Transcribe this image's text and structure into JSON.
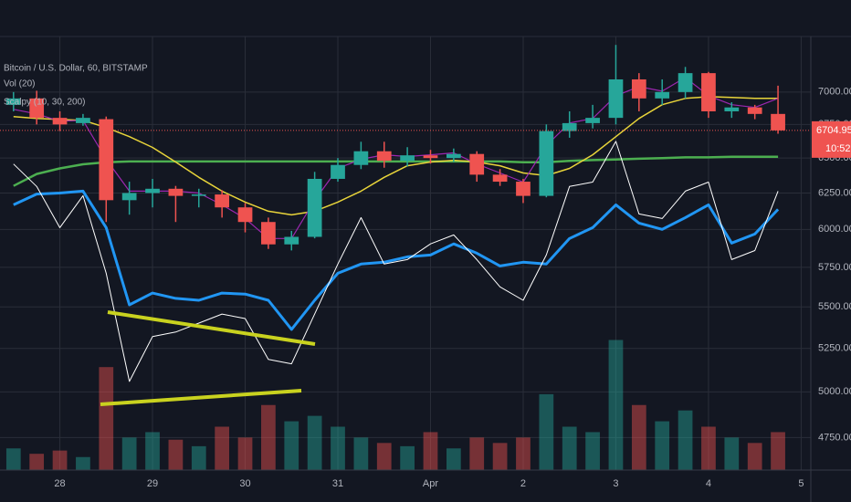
{
  "chart_data": {
    "type": "candlestick",
    "title": "Bitcoin / U.S. Dollar, 60, BITSTAMP",
    "legend_items": [
      "Vol (20)",
      "Scalpy (10, 30, 200)"
    ],
    "log_scale": true,
    "grid": true,
    "background": "#131722",
    "up_color": "#26a69a",
    "down_color": "#ef5350",
    "xlim": [
      -15.5,
      194.5
    ],
    "xticks": [
      {
        "value": 0,
        "label": "28"
      },
      {
        "value": 24,
        "label": "29"
      },
      {
        "value": 48,
        "label": "30"
      },
      {
        "value": 72,
        "label": "31"
      },
      {
        "value": 96,
        "label": "Apr"
      },
      {
        "value": 120,
        "label": "2"
      },
      {
        "value": 144,
        "label": "3"
      },
      {
        "value": 168,
        "label": "4"
      },
      {
        "value": 192,
        "label": "5"
      }
    ],
    "ylim": [
      4580,
      7450
    ],
    "yticks": [
      {
        "value": 4750,
        "label": "4750.00"
      },
      {
        "value": 5000,
        "label": "5000.00"
      },
      {
        "value": 5250,
        "label": "5250.00"
      },
      {
        "value": 5500,
        "label": "5500.00"
      },
      {
        "value": 5750,
        "label": "5750.00"
      },
      {
        "value": 6000,
        "label": "6000.00"
      },
      {
        "value": 6250,
        "label": "6250.00"
      },
      {
        "value": 6500,
        "label": "6500.00"
      },
      {
        "value": 6750,
        "label": "6750.00"
      },
      {
        "value": 7000,
        "label": "7000.00"
      }
    ],
    "y2lim": [
      0,
      400
    ],
    "last_price": 6704.95,
    "countdown": "10:52",
    "x": [
      -12,
      -6,
      0,
      6,
      12,
      18,
      24,
      30,
      36,
      42,
      48,
      54,
      60,
      66,
      72,
      78,
      84,
      90,
      96,
      102,
      108,
      114,
      120,
      126,
      132,
      138,
      144,
      150,
      156,
      162,
      168,
      174,
      180,
      186
    ],
    "open": [
      6900,
      6950,
      6800,
      6760,
      6790,
      6200,
      6250,
      6280,
      6230,
      6240,
      6150,
      6050,
      5900,
      5950,
      6350,
      6450,
      6550,
      6480,
      6520,
      6500,
      6530,
      6380,
      6330,
      6230,
      6700,
      6760,
      6800,
      7100,
      6950,
      7000,
      7150,
      6850,
      6880,
      6830
    ],
    "high": [
      7000,
      7010,
      6850,
      6830,
      6810,
      6330,
      6350,
      6300,
      6280,
      6270,
      6180,
      6080,
      5990,
      6400,
      6500,
      6620,
      6620,
      6580,
      6560,
      6570,
      6550,
      6420,
      6350,
      6750,
      6850,
      6900,
      7380,
      7150,
      7100,
      7200,
      7160,
      6920,
      6900,
      7050
    ],
    "low": [
      6850,
      6750,
      6700,
      6740,
      6050,
      6100,
      6150,
      6050,
      6150,
      6080,
      5980,
      5870,
      5860,
      5940,
      6330,
      6420,
      6430,
      6440,
      6460,
      6470,
      6330,
      6300,
      6180,
      6220,
      6650,
      6720,
      6750,
      6850,
      6900,
      6950,
      6800,
      6800,
      6790,
      6680
    ],
    "close": [
      6950,
      6800,
      6750,
      6800,
      6200,
      6250,
      6280,
      6230,
      6240,
      6150,
      6050,
      5900,
      5950,
      6350,
      6450,
      6550,
      6480,
      6520,
      6500,
      6530,
      6380,
      6330,
      6230,
      6700,
      6760,
      6800,
      7100,
      6950,
      7000,
      7150,
      6850,
      6880,
      6830,
      6705
    ],
    "volume": [
      20,
      15,
      18,
      12,
      95,
      30,
      35,
      28,
      22,
      40,
      30,
      60,
      45,
      50,
      40,
      30,
      25,
      22,
      35,
      20,
      30,
      25,
      30,
      70,
      40,
      35,
      120,
      60,
      45,
      55,
      40,
      30,
      25,
      35
    ],
    "series": [
      {
        "color": "#4caf50",
        "line_width": 2.5,
        "values": [
          6300,
          6385,
          6425,
          6455,
          6470,
          6475,
          6475,
          6475,
          6475,
          6475,
          6475,
          6475,
          6475,
          6475,
          6475,
          6475,
          6475,
          6475,
          6475,
          6475,
          6475,
          6475,
          6470,
          6470,
          6480,
          6485,
          6490,
          6495,
          6500,
          6505,
          6505,
          6510,
          6510,
          6510
        ]
      },
      {
        "color": "#e8d43a",
        "line_width": 1.5,
        "values": [
          6809,
          6795,
          6788,
          6781,
          6727,
          6658,
          6578,
          6471,
          6361,
          6263,
          6187,
          6124,
          6099,
          6124,
          6187,
          6263,
          6361,
          6444,
          6471,
          6484,
          6471,
          6444,
          6392,
          6373,
          6425,
          6524,
          6658,
          6795,
          6901,
          6950,
          6964,
          6957,
          6950,
          6950
        ]
      },
      {
        "color": "#9c27b0",
        "line_width": 1.2,
        "values": [
          6865,
          6830,
          6775,
          6781,
          6491,
          6263,
          6263,
          6263,
          6250,
          6168,
          6074,
          5939,
          5939,
          6199,
          6425,
          6491,
          6524,
          6511,
          6524,
          6538,
          6457,
          6392,
          6327,
          6591,
          6761,
          6795,
          6971,
          7043,
          7007,
          7115,
          6971,
          6901,
          6880,
          6950
        ]
      },
      {
        "color": "#2196f3",
        "line_width": 3,
        "values": [
          6168,
          6243,
          6250,
          6263,
          6012,
          5513,
          5586,
          5553,
          5541,
          5586,
          5580,
          5541,
          5363,
          5541,
          5712,
          5771,
          5783,
          5818,
          5830,
          5903,
          5842,
          5759,
          5783,
          5771,
          5939,
          6012,
          6168,
          6043,
          6000,
          6080,
          6168,
          5909,
          5969,
          6136
        ]
      },
      {
        "color": "#ffffff",
        "line_width": 1,
        "values": [
          6457,
          6296,
          6012,
          6231,
          5712,
          5059,
          5320,
          5347,
          5401,
          5456,
          5429,
          5186,
          5160,
          5456,
          5771,
          6080,
          5771,
          5800,
          5903,
          5963,
          5800,
          5625,
          5541,
          5830,
          6296,
          6327,
          6623,
          6105,
          6074,
          6263,
          6327,
          5800,
          5859,
          6263
        ]
      }
    ]
  }
}
